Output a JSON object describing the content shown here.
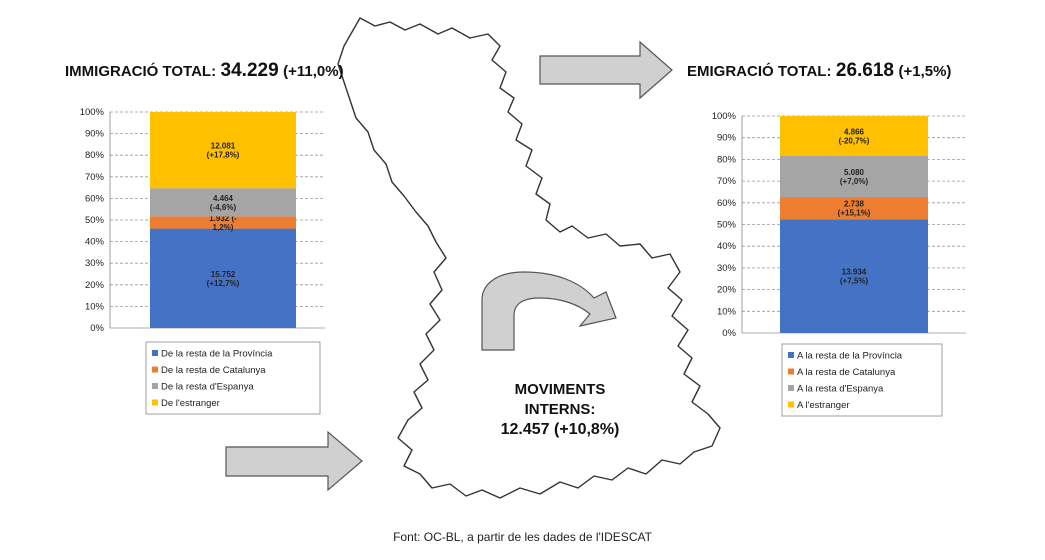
{
  "immigration": {
    "label": "IMMIGRACIÓ TOTAL:",
    "total": "34.229",
    "change": "(+11,0%)"
  },
  "emigration": {
    "label": "EMIGRACIÓ TOTAL:",
    "total": "26.618",
    "change": "(+1,5%)"
  },
  "internal": {
    "line1": "MOVIMENTS",
    "line2": "INTERNS:",
    "value": "12.457 (+10,8%)"
  },
  "source": "Font: OC-BL, a partir de les dades de l'IDESCAT",
  "colors": {
    "provincia": "#4472C4",
    "catalunya": "#ED7D31",
    "espanya": "#A5A5A5",
    "estranger": "#FFC000",
    "arrow_fill": "#D0D0D0",
    "arrow_stroke": "#555555"
  },
  "icons": [
    "map-outline",
    "right-arrow-icon",
    "curved-arrow-icon"
  ],
  "chart_data": [
    {
      "type": "bar",
      "stacked": true,
      "normalized": true,
      "ylim": [
        0,
        100
      ],
      "yticks": [
        "0%",
        "10%",
        "20%",
        "30%",
        "40%",
        "50%",
        "60%",
        "70%",
        "80%",
        "90%",
        "100%"
      ],
      "grid": true,
      "legend_position": "bottom",
      "series": [
        {
          "name": "De la resta de la Província",
          "value": 15752,
          "label": "15.752\n(+12,7%)",
          "color": "#4472C4"
        },
        {
          "name": "De la resta de Catalunya",
          "value": 1932,
          "label": "1.932 (-\n1,2%)",
          "color": "#ED7D31"
        },
        {
          "name": "De la resta d'Espanya",
          "value": 4464,
          "label": "4.464\n(-4,6%)",
          "color": "#A5A5A5"
        },
        {
          "name": "De l'estranger",
          "value": 12081,
          "label": "12.081\n(+17,8%)",
          "color": "#FFC000"
        }
      ]
    },
    {
      "type": "bar",
      "stacked": true,
      "normalized": true,
      "ylim": [
        0,
        100
      ],
      "yticks": [
        "0%",
        "10%",
        "20%",
        "30%",
        "40%",
        "50%",
        "60%",
        "70%",
        "80%",
        "90%",
        "100%"
      ],
      "grid": true,
      "legend_position": "bottom",
      "series": [
        {
          "name": "A  la resta de la Província",
          "value": 13934,
          "label": "13.934\n(+7,5%)",
          "color": "#4472C4"
        },
        {
          "name": "A  la resta de Catalunya",
          "value": 2738,
          "label": "2.738\n(+15,1%)",
          "color": "#ED7D31"
        },
        {
          "name": "A  la resta d'Espanya",
          "value": 5080,
          "label": "5.080\n(+7,0%)",
          "color": "#A5A5A5"
        },
        {
          "name": "A  l'estranger",
          "value": 4866,
          "label": "4.866\n(-20,7%)",
          "color": "#FFC000"
        }
      ]
    }
  ]
}
